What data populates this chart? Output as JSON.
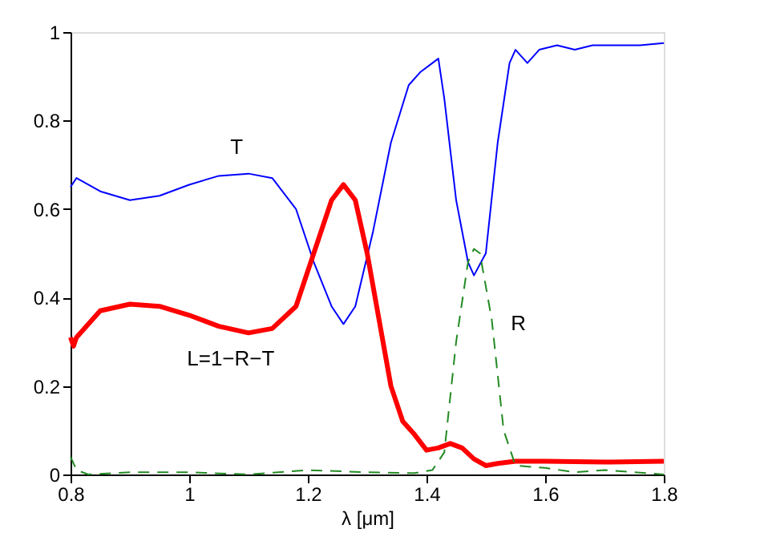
{
  "chart_data": {
    "type": "line",
    "xlabel": "λ [μm]",
    "xlim": [
      0.8,
      1.8
    ],
    "xticks": [
      0.8,
      1,
      1.2,
      1.4,
      1.6,
      1.8
    ],
    "ylim": [
      0,
      1
    ],
    "yticks": [
      0,
      0.2,
      0.4,
      0.6,
      0.8,
      1
    ],
    "grid": false,
    "series": [
      {
        "color": "#0000ff",
        "line_style": "solid",
        "x": [
          0.8,
          0.81,
          0.85,
          0.9,
          0.95,
          1.0,
          1.05,
          1.1,
          1.14,
          1.18,
          1.21,
          1.24,
          1.26,
          1.28,
          1.31,
          1.34,
          1.37,
          1.39,
          1.41,
          1.42,
          1.43,
          1.45,
          1.47,
          1.48,
          1.5,
          1.52,
          1.54,
          1.55,
          1.57,
          1.59,
          1.62,
          1.65,
          1.68,
          1.72,
          1.76,
          1.8
        ],
        "values": [
          0.65,
          0.67,
          0.64,
          0.62,
          0.63,
          0.655,
          0.675,
          0.68,
          0.67,
          0.6,
          0.48,
          0.38,
          0.34,
          0.38,
          0.55,
          0.75,
          0.88,
          0.91,
          0.93,
          0.94,
          0.85,
          0.62,
          0.48,
          0.45,
          0.5,
          0.75,
          0.93,
          0.96,
          0.93,
          0.96,
          0.97,
          0.96,
          0.97,
          0.97,
          0.97,
          0.975
        ]
      },
      {
        "color": "#ff0000",
        "line_style": "solid",
        "x": [
          0.8,
          0.805,
          0.81,
          0.85,
          0.9,
          0.95,
          1.0,
          1.05,
          1.1,
          1.14,
          1.18,
          1.21,
          1.24,
          1.26,
          1.28,
          1.3,
          1.32,
          1.34,
          1.36,
          1.38,
          1.4,
          1.42,
          1.44,
          1.46,
          1.48,
          1.5,
          1.52,
          1.55,
          1.6,
          1.7,
          1.8
        ],
        "values": [
          0.31,
          0.29,
          0.31,
          0.37,
          0.385,
          0.38,
          0.36,
          0.335,
          0.32,
          0.33,
          0.38,
          0.5,
          0.62,
          0.655,
          0.62,
          0.5,
          0.35,
          0.2,
          0.12,
          0.09,
          0.055,
          0.06,
          0.07,
          0.06,
          0.035,
          0.02,
          0.025,
          0.03,
          0.03,
          0.028,
          0.03
        ]
      },
      {
        "color": "#228b22",
        "line_style": "dashed",
        "x": [
          0.8,
          0.81,
          0.83,
          0.9,
          1.0,
          1.1,
          1.2,
          1.3,
          1.38,
          1.41,
          1.43,
          1.45,
          1.47,
          1.48,
          1.49,
          1.51,
          1.53,
          1.55,
          1.6,
          1.65,
          1.7,
          1.8
        ],
        "values": [
          0.04,
          0.01,
          0.0,
          0.005,
          0.005,
          0.0,
          0.01,
          0.005,
          0.003,
          0.01,
          0.05,
          0.3,
          0.48,
          0.51,
          0.5,
          0.35,
          0.1,
          0.02,
          0.015,
          0.005,
          0.01,
          0.0
        ]
      }
    ],
    "annotations": [
      "T",
      "L=1−R−T",
      "R"
    ]
  }
}
